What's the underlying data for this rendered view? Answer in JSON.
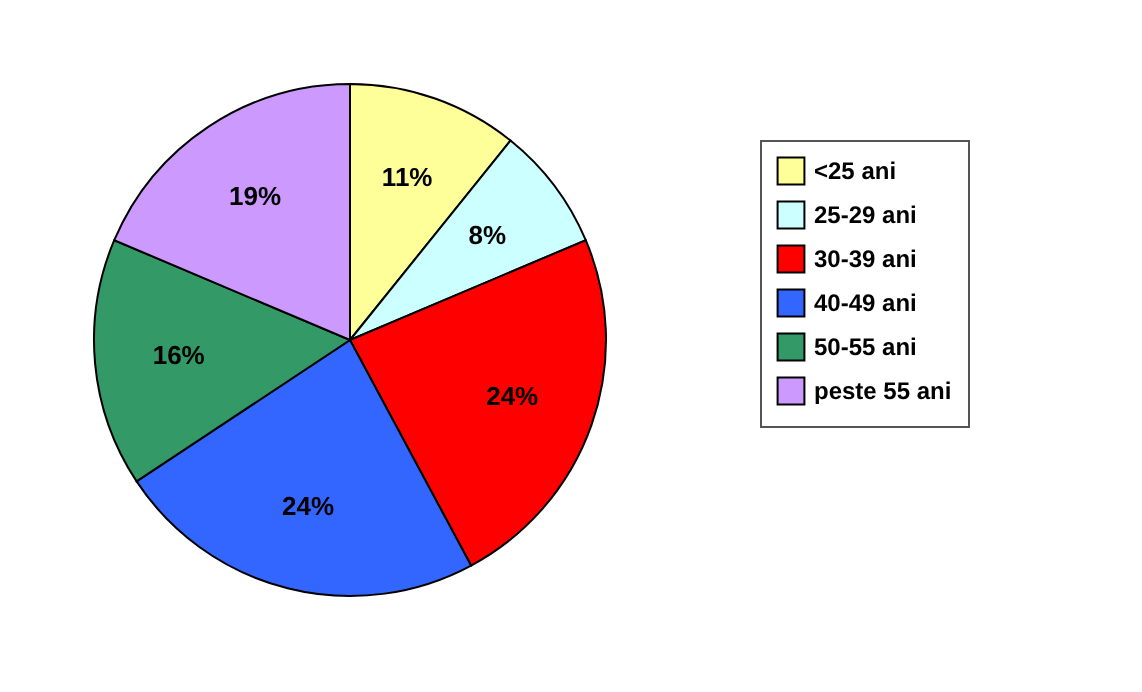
{
  "chart_data": {
    "type": "pie",
    "categories": [
      "<25 ani",
      "25-29 ani",
      "30-39 ani",
      "40-49 ani",
      "50-55 ani",
      "peste 55 ani"
    ],
    "values": [
      11,
      8,
      24,
      24,
      16,
      19
    ],
    "value_labels": [
      "11%",
      "8%",
      "24%",
      "24%",
      "16%",
      "19%"
    ],
    "colors": [
      "#ffff99",
      "#ccffff",
      "#ff0000",
      "#3366ff",
      "#339966",
      "#cc99ff"
    ],
    "legend": "right"
  }
}
